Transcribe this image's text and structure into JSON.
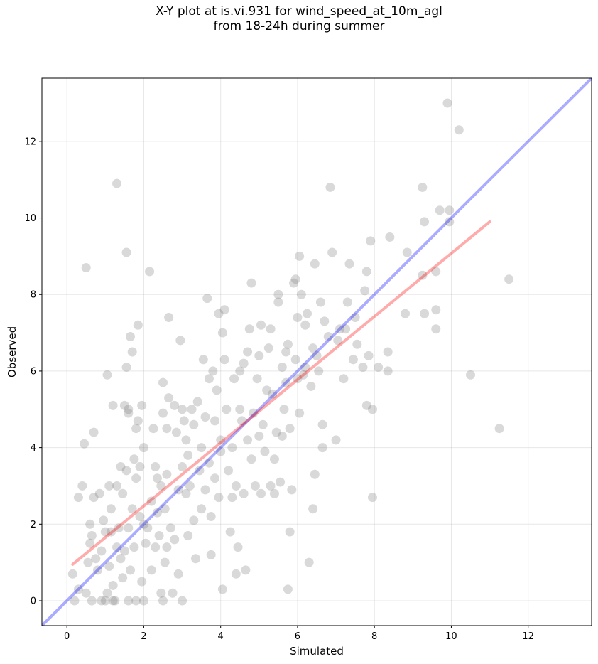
{
  "chart_data": {
    "type": "scatter",
    "title": "X-Y plot at is.vi.931 for wind_speed_at_10m_agl",
    "subtitle": "from 18-24h during summer",
    "xlabel": "Simulated",
    "ylabel": "Observed",
    "xlim": [
      -0.65,
      13.65
    ],
    "ylim": [
      -0.65,
      13.65
    ],
    "xticks": [
      0,
      2,
      4,
      6,
      8,
      10,
      12
    ],
    "yticks": [
      0,
      2,
      4,
      6,
      8,
      10,
      12
    ],
    "grid": true,
    "colors": {
      "points": "#808080",
      "one_to_one": "#0000ff",
      "fit": "#ff0000"
    },
    "one_to_one_line": {
      "x": [
        -0.65,
        13.65
      ],
      "y": [
        -0.65,
        13.65
      ]
    },
    "fit_line": {
      "x": [
        0.15,
        11.0
      ],
      "y": [
        0.95,
        9.9
      ]
    },
    "points": [
      [
        0.15,
        0.7
      ],
      [
        0.2,
        0.0
      ],
      [
        0.3,
        2.7
      ],
      [
        0.3,
        0.3
      ],
      [
        0.4,
        3.0
      ],
      [
        0.45,
        4.1
      ],
      [
        0.5,
        8.7
      ],
      [
        0.5,
        0.2
      ],
      [
        0.55,
        1.0
      ],
      [
        0.6,
        1.5
      ],
      [
        0.6,
        2.0
      ],
      [
        0.65,
        1.7
      ],
      [
        0.65,
        0.0
      ],
      [
        0.7,
        4.4
      ],
      [
        0.7,
        2.7
      ],
      [
        0.75,
        1.1
      ],
      [
        0.8,
        0.8
      ],
      [
        0.85,
        2.8
      ],
      [
        0.9,
        1.3
      ],
      [
        0.9,
        0.0
      ],
      [
        0.95,
        2.1
      ],
      [
        1.0,
        0.0
      ],
      [
        1.0,
        1.8
      ],
      [
        1.05,
        5.9
      ],
      [
        1.05,
        0.2
      ],
      [
        1.1,
        0.9
      ],
      [
        1.1,
        3.0
      ],
      [
        1.15,
        2.4
      ],
      [
        1.15,
        1.8
      ],
      [
        1.2,
        5.1
      ],
      [
        1.2,
        0.0
      ],
      [
        1.2,
        0.4
      ],
      [
        1.25,
        0.0
      ],
      [
        1.3,
        1.4
      ],
      [
        1.3,
        3.0
      ],
      [
        1.3,
        10.9
      ],
      [
        1.35,
        1.9
      ],
      [
        1.4,
        1.1
      ],
      [
        1.4,
        3.5
      ],
      [
        1.45,
        0.6
      ],
      [
        1.45,
        2.8
      ],
      [
        1.5,
        1.3
      ],
      [
        1.5,
        5.1
      ],
      [
        1.55,
        9.1
      ],
      [
        1.55,
        3.4
      ],
      [
        1.55,
        6.1
      ],
      [
        1.6,
        1.9
      ],
      [
        1.6,
        5.0
      ],
      [
        1.6,
        4.9
      ],
      [
        1.6,
        0.0
      ],
      [
        1.65,
        6.9
      ],
      [
        1.65,
        0.8
      ],
      [
        1.7,
        2.4
      ],
      [
        1.7,
        6.5
      ],
      [
        1.75,
        1.4
      ],
      [
        1.75,
        3.7
      ],
      [
        1.8,
        4.5
      ],
      [
        1.8,
        3.2
      ],
      [
        1.8,
        0.0
      ],
      [
        1.85,
        4.7
      ],
      [
        1.85,
        7.2
      ],
      [
        1.9,
        2.2
      ],
      [
        1.9,
        3.5
      ],
      [
        1.95,
        0.5
      ],
      [
        1.95,
        5.1
      ],
      [
        2.0,
        0.0
      ],
      [
        2.0,
        2.0
      ],
      [
        2.0,
        4.0
      ],
      [
        2.05,
        1.5
      ],
      [
        2.1,
        1.9
      ],
      [
        2.15,
        8.6
      ],
      [
        2.2,
        2.6
      ],
      [
        2.2,
        0.8
      ],
      [
        2.25,
        4.5
      ],
      [
        2.3,
        3.5
      ],
      [
        2.3,
        1.4
      ],
      [
        2.35,
        2.3
      ],
      [
        2.35,
        3.2
      ],
      [
        2.4,
        1.7
      ],
      [
        2.45,
        0.2
      ],
      [
        2.45,
        3.0
      ],
      [
        2.5,
        0.0
      ],
      [
        2.5,
        5.7
      ],
      [
        2.5,
        4.9
      ],
      [
        2.55,
        2.4
      ],
      [
        2.55,
        1.0
      ],
      [
        2.6,
        4.5
      ],
      [
        2.6,
        3.3
      ],
      [
        2.6,
        1.4
      ],
      [
        2.65,
        5.3
      ],
      [
        2.65,
        7.4
      ],
      [
        2.7,
        1.9
      ],
      [
        2.75,
        0.2
      ],
      [
        2.8,
        5.1
      ],
      [
        2.8,
        1.6
      ],
      [
        2.85,
        4.4
      ],
      [
        2.9,
        2.9
      ],
      [
        2.9,
        0.7
      ],
      [
        2.95,
        6.8
      ],
      [
        3.0,
        3.5
      ],
      [
        3.0,
        5.0
      ],
      [
        3.0,
        0.0
      ],
      [
        3.05,
        4.7
      ],
      [
        3.1,
        2.8
      ],
      [
        3.1,
        4.2
      ],
      [
        3.15,
        1.7
      ],
      [
        3.15,
        3.8
      ],
      [
        3.2,
        3.0
      ],
      [
        3.25,
        5.0
      ],
      [
        3.3,
        4.6
      ],
      [
        3.3,
        2.1
      ],
      [
        3.35,
        1.1
      ],
      [
        3.4,
        5.2
      ],
      [
        3.45,
        3.4
      ],
      [
        3.5,
        4.0
      ],
      [
        3.5,
        2.4
      ],
      [
        3.55,
        6.3
      ],
      [
        3.6,
        2.9
      ],
      [
        3.6,
        4.8
      ],
      [
        3.65,
        7.9
      ],
      [
        3.7,
        5.8
      ],
      [
        3.7,
        3.6
      ],
      [
        3.75,
        1.2
      ],
      [
        3.75,
        2.2
      ],
      [
        3.8,
        6.0
      ],
      [
        3.85,
        3.2
      ],
      [
        3.85,
        4.7
      ],
      [
        3.9,
        5.5
      ],
      [
        3.95,
        2.7
      ],
      [
        3.95,
        7.5
      ],
      [
        4.0,
        4.2
      ],
      [
        4.0,
        3.9
      ],
      [
        4.05,
        7.0
      ],
      [
        4.05,
        0.3
      ],
      [
        4.1,
        6.3
      ],
      [
        4.1,
        7.6
      ],
      [
        4.15,
        5.0
      ],
      [
        4.2,
        3.4
      ],
      [
        4.25,
        1.8
      ],
      [
        4.3,
        4.0
      ],
      [
        4.3,
        2.7
      ],
      [
        4.35,
        5.8
      ],
      [
        4.4,
        0.7
      ],
      [
        4.4,
        3.0
      ],
      [
        4.45,
        1.4
      ],
      [
        4.5,
        6.0
      ],
      [
        4.5,
        5.0
      ],
      [
        4.55,
        4.7
      ],
      [
        4.6,
        2.8
      ],
      [
        4.6,
        6.2
      ],
      [
        4.65,
        0.8
      ],
      [
        4.7,
        4.2
      ],
      [
        4.7,
        6.5
      ],
      [
        4.75,
        7.1
      ],
      [
        4.8,
        8.3
      ],
      [
        4.8,
        3.7
      ],
      [
        4.85,
        4.9
      ],
      [
        4.9,
        3.0
      ],
      [
        4.95,
        5.8
      ],
      [
        5.0,
        6.4
      ],
      [
        5.0,
        4.3
      ],
      [
        5.05,
        2.8
      ],
      [
        5.05,
        7.2
      ],
      [
        5.1,
        4.6
      ],
      [
        5.15,
        3.9
      ],
      [
        5.2,
        5.5
      ],
      [
        5.25,
        6.6
      ],
      [
        5.3,
        3.0
      ],
      [
        5.3,
        7.1
      ],
      [
        5.35,
        5.4
      ],
      [
        5.4,
        3.7
      ],
      [
        5.4,
        2.8
      ],
      [
        5.45,
        4.4
      ],
      [
        5.5,
        8.0
      ],
      [
        5.5,
        7.8
      ],
      [
        5.55,
        3.1
      ],
      [
        5.6,
        6.1
      ],
      [
        5.6,
        4.3
      ],
      [
        5.65,
        5.0
      ],
      [
        5.7,
        6.5
      ],
      [
        5.7,
        5.7
      ],
      [
        5.75,
        0.3
      ],
      [
        5.75,
        6.7
      ],
      [
        5.8,
        4.5
      ],
      [
        5.8,
        1.8
      ],
      [
        5.85,
        2.9
      ],
      [
        5.9,
        8.3
      ],
      [
        5.95,
        6.3
      ],
      [
        5.95,
        8.4
      ],
      [
        6.0,
        5.8
      ],
      [
        6.0,
        7.4
      ],
      [
        6.05,
        9.0
      ],
      [
        6.05,
        4.9
      ],
      [
        6.1,
        8.0
      ],
      [
        6.15,
        5.9
      ],
      [
        6.2,
        7.2
      ],
      [
        6.2,
        6.1
      ],
      [
        6.25,
        7.5
      ],
      [
        6.3,
        1.0
      ],
      [
        6.35,
        5.6
      ],
      [
        6.4,
        2.4
      ],
      [
        6.4,
        6.6
      ],
      [
        6.45,
        8.8
      ],
      [
        6.45,
        3.3
      ],
      [
        6.5,
        6.4
      ],
      [
        6.55,
        6.0
      ],
      [
        6.6,
        7.8
      ],
      [
        6.65,
        4.6
      ],
      [
        6.65,
        4.0
      ],
      [
        6.7,
        7.3
      ],
      [
        6.8,
        6.9
      ],
      [
        6.85,
        10.8
      ],
      [
        6.9,
        9.1
      ],
      [
        7.0,
        4.2
      ],
      [
        7.05,
        6.8
      ],
      [
        7.1,
        7.1
      ],
      [
        7.2,
        5.8
      ],
      [
        7.25,
        7.1
      ],
      [
        7.3,
        7.8
      ],
      [
        7.35,
        8.8
      ],
      [
        7.45,
        6.3
      ],
      [
        7.5,
        7.4
      ],
      [
        7.55,
        6.7
      ],
      [
        7.7,
        6.1
      ],
      [
        7.75,
        8.1
      ],
      [
        7.8,
        8.6
      ],
      [
        7.8,
        5.1
      ],
      [
        7.85,
        6.4
      ],
      [
        7.9,
        9.4
      ],
      [
        7.95,
        2.7
      ],
      [
        7.95,
        5.0
      ],
      [
        8.1,
        6.1
      ],
      [
        8.35,
        6.5
      ],
      [
        8.35,
        6.0
      ],
      [
        8.4,
        9.5
      ],
      [
        8.8,
        7.5
      ],
      [
        8.85,
        9.1
      ],
      [
        9.25,
        10.8
      ],
      [
        9.25,
        8.5
      ],
      [
        9.3,
        7.5
      ],
      [
        9.3,
        9.9
      ],
      [
        9.6,
        7.6
      ],
      [
        9.6,
        7.1
      ],
      [
        9.6,
        8.6
      ],
      [
        9.7,
        10.2
      ],
      [
        9.9,
        13.0
      ],
      [
        9.95,
        10.2
      ],
      [
        9.95,
        9.9
      ],
      [
        10.2,
        12.3
      ],
      [
        10.5,
        5.9
      ],
      [
        11.25,
        4.5
      ],
      [
        11.5,
        8.4
      ]
    ]
  }
}
